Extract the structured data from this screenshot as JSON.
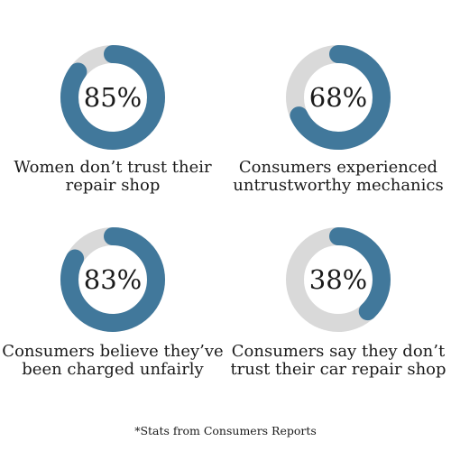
{
  "colors": {
    "filled": "#41789b",
    "track": "#d9d9d9"
  },
  "chart_data": [
    {
      "type": "pie",
      "value": 85,
      "value_label": "85%",
      "caption": "Women don’t trust their repair shop"
    },
    {
      "type": "pie",
      "value": 68,
      "value_label": "68%",
      "caption": "Consumers experienced untrustworthy mechanics"
    },
    {
      "type": "pie",
      "value": 83,
      "value_label": "83%",
      "caption": "Consumers believe they’ve been charged unfairly"
    },
    {
      "type": "pie",
      "value": 38,
      "value_label": "38%",
      "caption": "Consumers say they don’t trust their car repair shop"
    }
  ],
  "footnote": "*Stats from Consumers Reports"
}
